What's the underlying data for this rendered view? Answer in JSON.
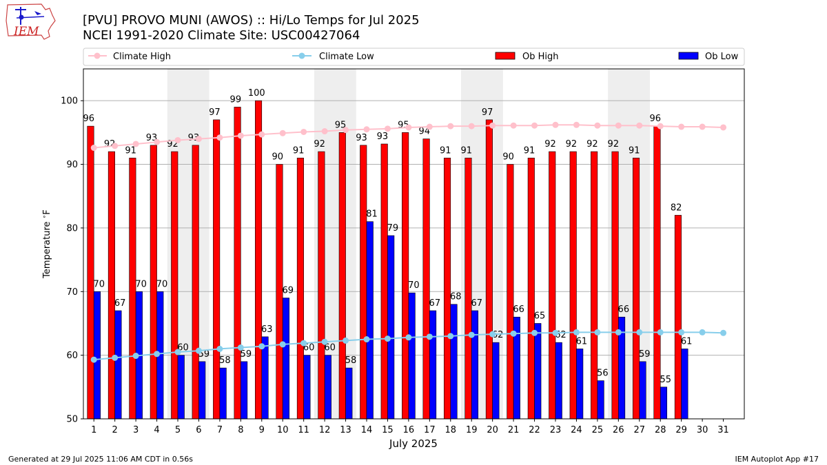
{
  "header": {
    "logo_text": "IEM",
    "title_line1": "[PVU] PROVO MUNI (AWOS) :: Hi/Lo Temps for Jul 2025",
    "title_line2": "NCEI 1991-2020 Climate Site: USC00427064"
  },
  "footer": {
    "generated": "Generated at 29 Jul 2025 11:06 AM CDT in 0.56s",
    "app": "IEM Autoplot App #17"
  },
  "colors": {
    "ob_high": "#ff0000",
    "ob_low": "#0000ff",
    "climate_high": "#ffc0cb",
    "climate_low": "#87ceeb",
    "weekend_band": "#eeeeee",
    "grid": "#b0b0b0"
  },
  "chart_data": {
    "type": "bar",
    "xlabel": "July 2025",
    "ylabel": "Temperature $^\\circ$F",
    "ylim": [
      50,
      105
    ],
    "yticks": [
      50,
      60,
      70,
      80,
      90,
      100
    ],
    "grid": "horizontal",
    "legend_position": "top",
    "categories": [
      "1",
      "2",
      "3",
      "4",
      "5",
      "6",
      "7",
      "8",
      "9",
      "10",
      "11",
      "12",
      "13",
      "14",
      "15",
      "16",
      "17",
      "18",
      "19",
      "20",
      "21",
      "22",
      "23",
      "24",
      "25",
      "26",
      "27",
      "28",
      "29",
      "30",
      "31"
    ],
    "weekend_bands": [
      [
        5,
        6
      ],
      [
        12,
        13
      ],
      [
        19,
        20
      ],
      [
        26,
        27
      ]
    ],
    "series": [
      {
        "name": "Ob High",
        "kind": "bar",
        "values": [
          96.0,
          92,
          91,
          93,
          92,
          93,
          97,
          99,
          100,
          90,
          91,
          92,
          95,
          93,
          93.2,
          95,
          94,
          91,
          91,
          97,
          90,
          91,
          92,
          92,
          92,
          92,
          91,
          96,
          82,
          null,
          null
        ],
        "labels": [
          "96",
          "92",
          "91",
          "93",
          "92",
          "93",
          "97",
          "99",
          "100",
          "90",
          "91",
          "92",
          "95",
          "93",
          "93",
          "95",
          "94",
          "91",
          "91",
          "97",
          "90",
          "91",
          "92",
          "92",
          "92",
          "92",
          "91",
          "96",
          "82",
          "",
          ""
        ]
      },
      {
        "name": "Ob Low",
        "kind": "bar",
        "values": [
          70,
          67,
          70,
          70,
          60,
          59,
          58,
          59,
          62.9,
          69,
          60,
          60,
          58,
          81,
          78.8,
          69.8,
          67,
          68,
          67,
          62,
          66,
          65,
          62,
          61,
          56,
          66,
          59,
          55,
          61,
          null,
          null
        ],
        "labels": [
          "70",
          "67",
          "70",
          "70",
          "60",
          "59",
          "58",
          "59",
          "63",
          "69",
          "60",
          "60",
          "58",
          "81",
          "79",
          "70",
          "67",
          "68",
          "67",
          "62",
          "66",
          "65",
          "62",
          "61",
          "56",
          "66",
          "59",
          "55",
          "61",
          "",
          ""
        ]
      },
      {
        "name": "Climate High",
        "kind": "line",
        "values": [
          92.6,
          92.9,
          93.2,
          93.5,
          93.8,
          94.0,
          94.2,
          94.5,
          94.7,
          94.9,
          95.1,
          95.2,
          95.4,
          95.5,
          95.6,
          95.8,
          95.9,
          96.0,
          96.0,
          96.1,
          96.1,
          96.1,
          96.2,
          96.2,
          96.1,
          96.1,
          96.1,
          96.0,
          95.9,
          95.9,
          95.8
        ]
      },
      {
        "name": "Climate Low",
        "kind": "line",
        "values": [
          59.3,
          59.6,
          59.9,
          60.2,
          60.5,
          60.7,
          61.0,
          61.2,
          61.4,
          61.7,
          61.9,
          62.1,
          62.3,
          62.5,
          62.6,
          62.8,
          62.9,
          63.0,
          63.2,
          63.3,
          63.4,
          63.5,
          63.5,
          63.6,
          63.6,
          63.6,
          63.6,
          63.6,
          63.6,
          63.6,
          63.5
        ]
      }
    ],
    "legend": [
      "Climate High",
      "Climate Low",
      "Ob High",
      "Ob Low"
    ]
  }
}
